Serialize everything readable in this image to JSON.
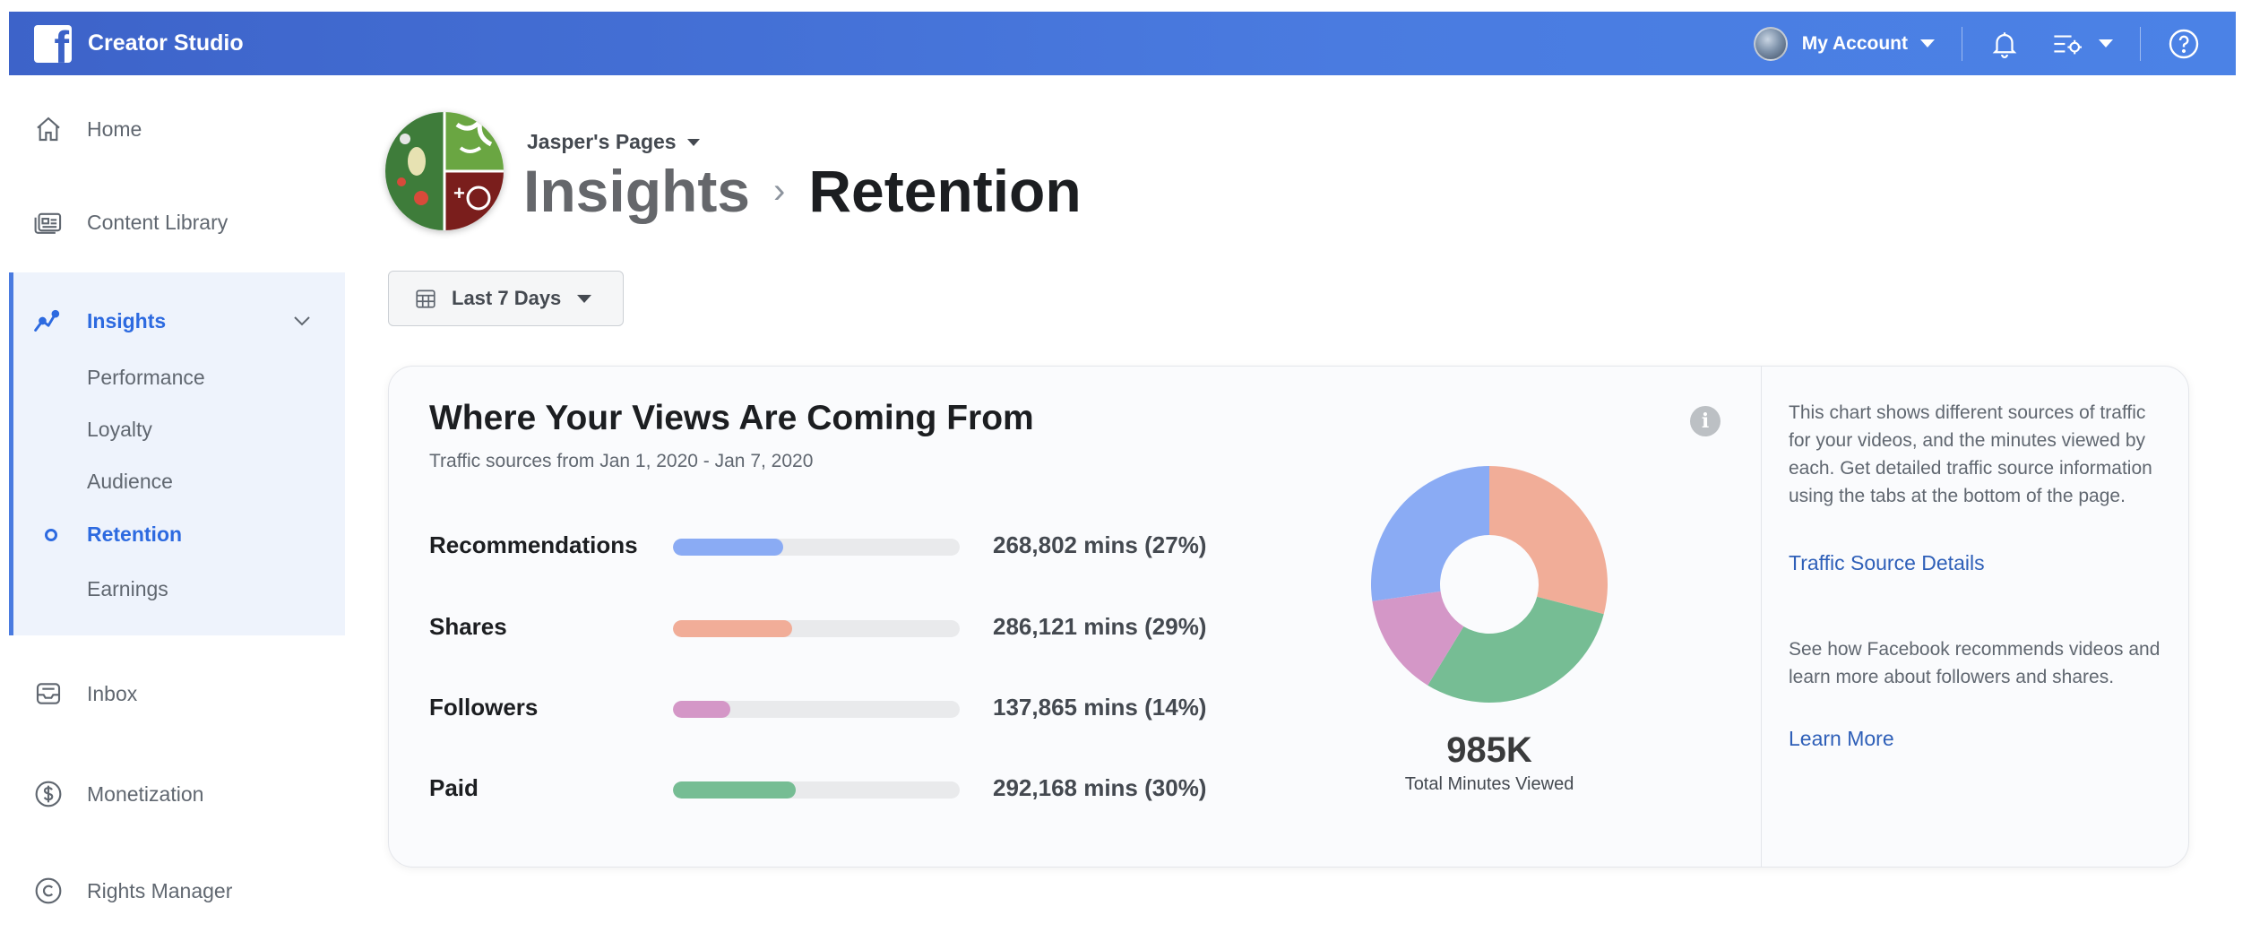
{
  "topbar": {
    "app_title": "Creator Studio",
    "account_label": "My Account",
    "icons": [
      "facebook-logo",
      "caret-down",
      "bell-icon",
      "settings-icon",
      "caret-down",
      "help-icon"
    ]
  },
  "sidebar": {
    "home": "Home",
    "content_library": "Content Library",
    "insights": "Insights",
    "sub_items": {
      "performance": "Performance",
      "loyalty": "Loyalty",
      "audience": "Audience",
      "retention": "Retention",
      "earnings": "Earnings"
    },
    "inbox": "Inbox",
    "monetization": "Monetization",
    "rights_manager": "Rights Manager"
  },
  "header": {
    "page_name": "Jasper's Pages",
    "breadcrumb_parent": "Insights",
    "breadcrumb_separator": "›",
    "title": "Retention"
  },
  "date_filter": {
    "label": "Last 7 Days"
  },
  "card": {
    "title": "Where Your Views Are Coming From",
    "subtitle": "Traffic sources from Jan 1, 2020 - Jan 7, 2020",
    "sources": [
      {
        "name": "Recommendations",
        "value": "268,802 mins (27%)"
      },
      {
        "name": "Shares",
        "value": "286,121 mins (29%)"
      },
      {
        "name": "Followers",
        "value": "137,865 mins (14%)"
      },
      {
        "name": "Paid",
        "value": "292,168 mins (30%)"
      }
    ],
    "total_value": "985K",
    "total_label": "Total Minutes Viewed",
    "help_text_1": "This chart shows different sources of traffic for your videos, and the minutes viewed by each. Get detailed traffic source information using the tabs at the bottom of the page.",
    "link_1": "Traffic Source Details",
    "help_text_2": "See how Facebook recommends videos and learn more about followers and shares.",
    "link_2": "Learn More"
  },
  "chart_data": {
    "type": "pie",
    "categories": [
      "Recommendations",
      "Shares",
      "Followers",
      "Paid"
    ],
    "values": [
      268802,
      286121,
      137865,
      292168
    ],
    "percent": [
      27,
      29,
      14,
      30
    ],
    "colors": [
      "#8aabf4",
      "#f1ad98",
      "#d497c7",
      "#76bd94"
    ],
    "donut_order": [
      "Shares",
      "Paid",
      "Followers",
      "Recommendations"
    ],
    "title": "",
    "total_label": "Total Minutes Viewed"
  }
}
